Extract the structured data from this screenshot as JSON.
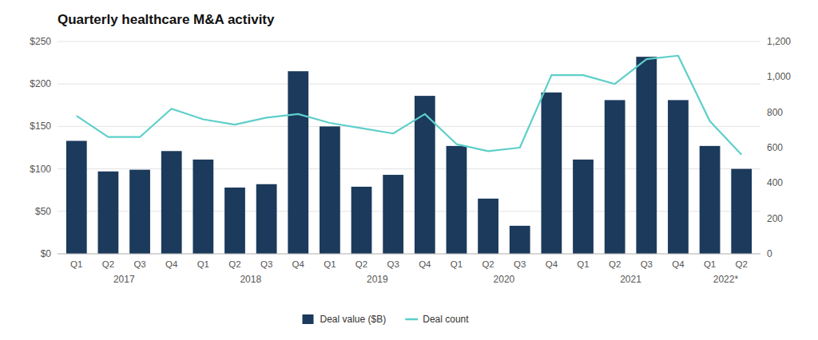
{
  "chart_data": {
    "type": "bar",
    "title": "Quarterly healthcare M&A activity",
    "categories": [
      "Q1",
      "Q2",
      "Q3",
      "Q4",
      "Q1",
      "Q2",
      "Q3",
      "Q4",
      "Q1",
      "Q2",
      "Q3",
      "Q4",
      "Q1",
      "Q2",
      "Q3",
      "Q4",
      "Q1",
      "Q2",
      "Q3",
      "Q4",
      "Q1",
      "Q2"
    ],
    "series": [
      {
        "name": "Deal value ($B)",
        "type": "bar",
        "color": "#1b3a5c",
        "values": [
          133,
          97,
          99,
          121,
          111,
          78,
          82,
          215,
          150,
          79,
          93,
          186,
          127,
          65,
          33,
          190,
          111,
          181,
          232,
          181,
          127,
          100
        ]
      },
      {
        "name": "Deal count",
        "type": "line",
        "color": "#5ecfca",
        "axis": "y2",
        "values": [
          780,
          660,
          660,
          820,
          760,
          730,
          770,
          790,
          740,
          710,
          680,
          790,
          620,
          580,
          600,
          1010,
          1010,
          960,
          1100,
          1120,
          750,
          560
        ]
      }
    ],
    "ylim": [
      0,
      250
    ],
    "yticks": [
      {
        "value": 0,
        "label": "$0"
      },
      {
        "value": 50,
        "label": "$50"
      },
      {
        "value": 100,
        "label": "$100"
      },
      {
        "value": 150,
        "label": "$150"
      },
      {
        "value": 200,
        "label": "$200"
      },
      {
        "value": 250,
        "label": "$250"
      }
    ],
    "y2lim": [
      0,
      1200
    ],
    "y2ticks": [
      0,
      200,
      400,
      600,
      800,
      {
        "value": 1000,
        "label": "1,000"
      },
      {
        "value": 1200,
        "label": "1,200"
      }
    ],
    "annotations": [
      {
        "text": "2017",
        "x": 1.5
      },
      {
        "text": "2018",
        "x": 5.5
      },
      {
        "text": "2019",
        "x": 9.5
      },
      {
        "text": "2020",
        "x": 13.5
      },
      {
        "text": "2021",
        "x": 17.5
      },
      {
        "text": "2022*",
        "x": 20.5
      }
    ],
    "grid": true,
    "legend": "bottom"
  }
}
